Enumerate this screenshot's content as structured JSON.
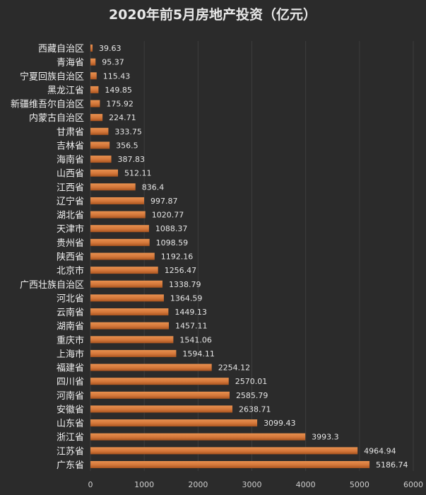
{
  "chart_data": {
    "type": "bar",
    "orientation": "horizontal",
    "title": "2020年前5月房地产投资（亿元）",
    "xlabel": "",
    "ylabel": "",
    "xlim": [
      0,
      6000
    ],
    "x_ticks": [
      0,
      1000,
      2000,
      3000,
      4000,
      5000,
      6000
    ],
    "grid": true,
    "legend": "none",
    "colors": {
      "bar": "#d4773a",
      "bar_dark": "#a9541f",
      "background": "#2b2b2b"
    },
    "categories": [
      "西藏自治区",
      "青海省",
      "宁夏回族自治区",
      "黑龙江省",
      "新疆维吾尔自治区",
      "内蒙古自治区",
      "甘肃省",
      "吉林省",
      "海南省",
      "山西省",
      "江西省",
      "辽宁省",
      "湖北省",
      "天津市",
      "贵州省",
      "陕西省",
      "北京市",
      "广西壮族自治区",
      "河北省",
      "云南省",
      "湖南省",
      "重庆市",
      "上海市",
      "福建省",
      "四川省",
      "河南省",
      "安徽省",
      "山东省",
      "浙江省",
      "江苏省",
      "广东省"
    ],
    "values": [
      39.63,
      95.37,
      115.43,
      149.85,
      175.92,
      224.71,
      333.75,
      356.5,
      387.83,
      512.11,
      836.4,
      997.87,
      1020.77,
      1088.37,
      1098.59,
      1192.16,
      1256.47,
      1338.79,
      1364.59,
      1449.13,
      1457.11,
      1541.06,
      1594.11,
      2254.12,
      2570.01,
      2585.79,
      2638.71,
      3099.43,
      3993.3,
      4964.94,
      5186.74
    ]
  }
}
